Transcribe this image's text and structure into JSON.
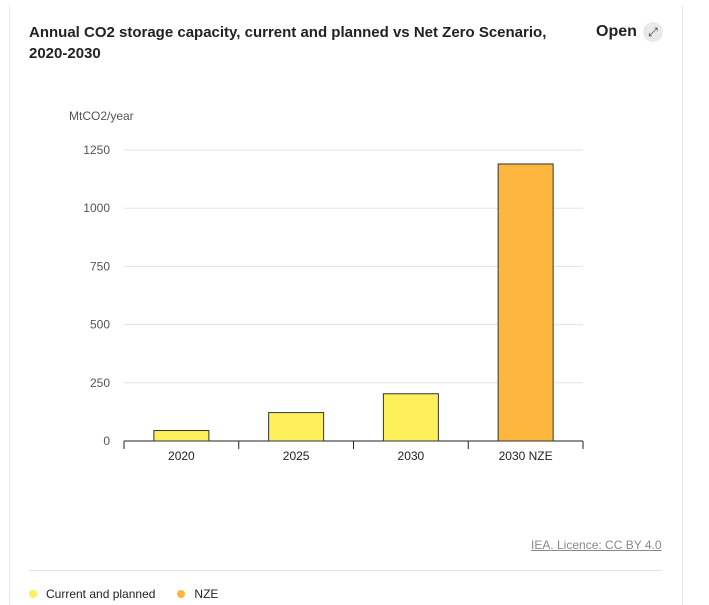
{
  "header": {
    "title": "Annual CO2 storage capacity, current and planned vs Net Zero Scenario, 2020-2030",
    "open_label": "Open",
    "open_icon": "external-link-icon"
  },
  "source": "IEA. Licence: CC BY 4.0",
  "colors": {
    "current": "#fdf05a",
    "nze": "#fdb73f",
    "grid": "#e3e3e3",
    "axis": "#222222"
  },
  "legend": [
    {
      "label": "Current and planned",
      "color": "#fdf05a"
    },
    {
      "label": "NZE",
      "color": "#fdb73f"
    }
  ],
  "chart_data": {
    "type": "bar",
    "title": "Annual CO2 storage capacity, current and planned vs Net Zero Scenario, 2020-2030",
    "ylabel": "MtCO2/year",
    "xlabel": "",
    "categories": [
      "2020",
      "2025",
      "2030",
      "2030 NZE"
    ],
    "values": [
      45,
      122,
      203,
      1190
    ],
    "bar_series": [
      "Current and planned",
      "Current and planned",
      "Current and planned",
      "NZE"
    ],
    "ylim": [
      0,
      1250
    ],
    "yticks": [
      0,
      250,
      500,
      750,
      1000,
      1250
    ],
    "grid": true,
    "legend_position": "bottom"
  }
}
